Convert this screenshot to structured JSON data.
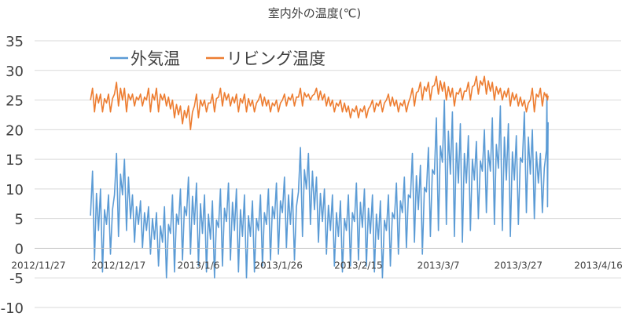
{
  "chart_data": {
    "type": "line",
    "title": "室内外の温度(℃)",
    "xlabel": "",
    "ylabel": "",
    "ylim": [
      -10,
      35
    ],
    "yticks": [
      35,
      30,
      25,
      20,
      15,
      10,
      5,
      0,
      -5,
      -10
    ],
    "xlim": [
      "2012-11-27",
      "2013-04-16"
    ],
    "xticks": [
      "2012/11/27",
      "2012/12/17",
      "2013/1/6",
      "2013/1/26",
      "2013/2/15",
      "2013/3/7",
      "2013/3/27",
      "2013/4/16"
    ],
    "grid": true,
    "legend_position": "top",
    "series": [
      {
        "name": "外気温",
        "color": "#5B9BD5",
        "x": [
          "2012-12-10",
          "2012-12-12",
          "2012-12-14",
          "2012-12-16",
          "2012-12-18",
          "2012-12-20",
          "2012-12-22",
          "2012-12-24",
          "2012-12-26",
          "2012-12-28",
          "2012-12-30",
          "2013-01-01",
          "2013-01-03",
          "2013-01-05",
          "2013-01-07",
          "2013-01-09",
          "2013-01-11",
          "2013-01-13",
          "2013-01-15",
          "2013-01-17",
          "2013-01-19",
          "2013-01-21",
          "2013-01-23",
          "2013-01-25",
          "2013-01-27",
          "2013-01-29",
          "2013-01-31",
          "2013-02-02",
          "2013-02-04",
          "2013-02-06",
          "2013-02-08",
          "2013-02-10",
          "2013-02-12",
          "2013-02-14",
          "2013-02-16",
          "2013-02-18",
          "2013-02-20",
          "2013-02-22",
          "2013-02-24",
          "2013-02-26",
          "2013-02-28",
          "2013-03-02",
          "2013-03-04",
          "2013-03-06",
          "2013-03-08",
          "2013-03-10",
          "2013-03-12",
          "2013-03-14",
          "2013-03-16",
          "2013-03-18",
          "2013-03-20",
          "2013-03-22",
          "2013-03-24",
          "2013-03-26",
          "2013-03-28",
          "2013-03-30",
          "2013-04-01",
          "2013-04-03"
        ],
        "lo": [
          -2,
          -4,
          -1,
          2,
          3,
          1,
          0,
          -1,
          -3,
          -5,
          -4,
          -2,
          -1,
          -3,
          -4,
          -5,
          -3,
          -2,
          -4,
          -5,
          -4,
          -3,
          -2,
          -1,
          0,
          -2,
          2,
          4,
          1,
          -1,
          -3,
          -4,
          -3,
          -2,
          -3,
          -4,
          -5,
          -3,
          -1,
          0,
          1,
          -1,
          2,
          3,
          4,
          2,
          1,
          3,
          5,
          6,
          4,
          3,
          2,
          4,
          6,
          5,
          6,
          7
        ],
        "hi": [
          13,
          10,
          9,
          16,
          15,
          9,
          8,
          7,
          6,
          7,
          9,
          10,
          12,
          11,
          9,
          8,
          10,
          11,
          10,
          9,
          8,
          9,
          10,
          11,
          12,
          10,
          17,
          16,
          12,
          10,
          9,
          8,
          9,
          11,
          10,
          9,
          8,
          9,
          11,
          12,
          16,
          14,
          17,
          22,
          25,
          23,
          21,
          19,
          18,
          20,
          22,
          24,
          21,
          19,
          23,
          20,
          16,
          26
        ]
      },
      {
        "name": "リビング温度",
        "color": "#ED7D31",
        "x": [
          "2012-12-10",
          "2012-12-12",
          "2012-12-14",
          "2012-12-16",
          "2012-12-18",
          "2012-12-20",
          "2012-12-22",
          "2012-12-24",
          "2012-12-26",
          "2012-12-28",
          "2012-12-30",
          "2013-01-01",
          "2013-01-03",
          "2013-01-05",
          "2013-01-07",
          "2013-01-09",
          "2013-01-11",
          "2013-01-13",
          "2013-01-15",
          "2013-01-17",
          "2013-01-19",
          "2013-01-21",
          "2013-01-23",
          "2013-01-25",
          "2013-01-27",
          "2013-01-29",
          "2013-01-31",
          "2013-02-02",
          "2013-02-04",
          "2013-02-06",
          "2013-02-08",
          "2013-02-10",
          "2013-02-12",
          "2013-02-14",
          "2013-02-16",
          "2013-02-18",
          "2013-02-20",
          "2013-02-22",
          "2013-02-24",
          "2013-02-26",
          "2013-02-28",
          "2013-03-02",
          "2013-03-04",
          "2013-03-06",
          "2013-03-08",
          "2013-03-10",
          "2013-03-12",
          "2013-03-14",
          "2013-03-16",
          "2013-03-18",
          "2013-03-20",
          "2013-03-22",
          "2013-03-24",
          "2013-03-26",
          "2013-03-28",
          "2013-03-30",
          "2013-04-01",
          "2013-04-03"
        ],
        "lo": [
          23,
          23,
          23,
          24,
          23,
          24,
          24,
          23,
          23,
          24,
          22,
          21,
          20,
          22,
          23,
          23,
          24,
          24,
          23,
          23,
          23,
          24,
          23,
          23,
          24,
          24,
          24,
          25,
          25,
          24,
          23,
          23,
          22,
          22,
          22,
          23,
          23,
          24,
          23,
          23,
          24,
          25,
          25,
          26,
          25,
          24,
          25,
          25,
          26,
          26,
          25,
          25,
          24,
          24,
          23,
          23,
          24,
          25
        ],
        "hi": [
          27,
          26,
          26,
          28,
          27,
          26,
          26,
          27,
          27,
          26,
          25,
          24,
          24,
          26,
          25,
          26,
          27,
          26,
          26,
          26,
          25,
          26,
          25,
          25,
          26,
          26,
          27,
          26,
          27,
          26,
          25,
          25,
          24,
          24,
          24,
          25,
          25,
          26,
          25,
          25,
          27,
          28,
          28,
          29,
          28,
          27,
          27,
          28,
          29,
          29,
          28,
          27,
          27,
          26,
          25,
          27,
          27,
          26
        ]
      }
    ]
  }
}
